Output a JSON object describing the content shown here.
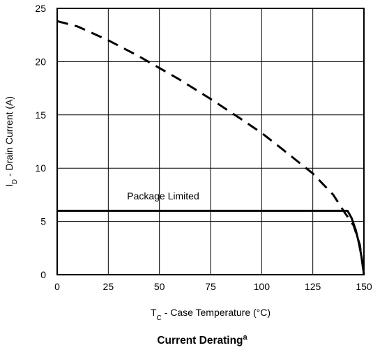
{
  "chart_data": {
    "type": "line",
    "title": "Current Derating",
    "title_superscript": "a",
    "xlabel": {
      "main": "T",
      "sub": "C",
      "rest": " - Case Temperature (°C)"
    },
    "ylabel": {
      "main": "I",
      "sub": "D",
      "rest": " - Drain Current (A)"
    },
    "xlim": [
      0,
      150
    ],
    "ylim": [
      0,
      25
    ],
    "xticks": [
      0,
      25,
      50,
      75,
      100,
      125,
      150
    ],
    "yticks": [
      0,
      5,
      10,
      15,
      20,
      25
    ],
    "grid": true,
    "annotations": [
      {
        "text": "Package Limited",
        "x": 45,
        "y": 7.4
      }
    ],
    "series": [
      {
        "style": "dashed",
        "x": [
          0,
          10,
          25,
          40,
          50,
          60,
          75,
          90,
          100,
          110,
          125,
          135,
          140,
          145,
          148,
          150
        ],
        "y": [
          23.8,
          23.3,
          22.0,
          20.5,
          19.4,
          18.3,
          16.5,
          14.6,
          13.3,
          11.8,
          9.5,
          7.5,
          6.0,
          4.6,
          2.8,
          0
        ]
      },
      {
        "name": "Package Limited",
        "style": "solid",
        "x": [
          0,
          142,
          144,
          146,
          147.5,
          149,
          150
        ],
        "y": [
          6,
          6,
          5.3,
          4.2,
          3.0,
          1.5,
          0
        ]
      }
    ]
  }
}
